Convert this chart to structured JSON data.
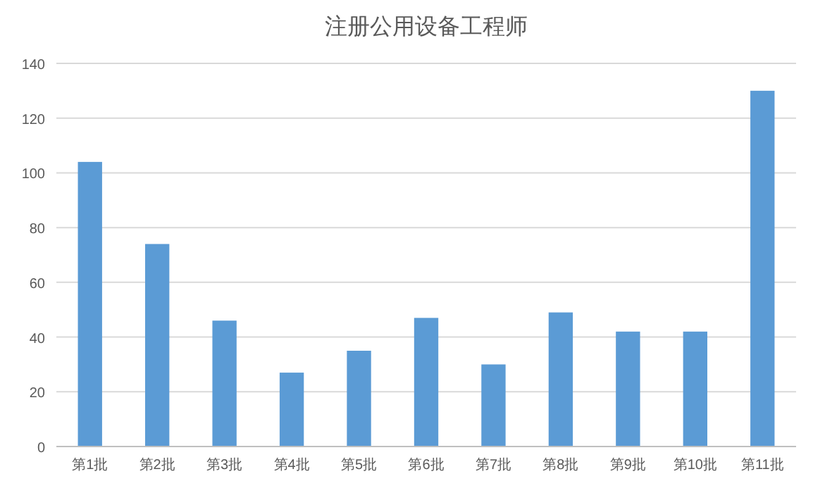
{
  "chart_data": {
    "type": "bar",
    "title": "注册公用设备工程师",
    "categories": [
      "第1批",
      "第2批",
      "第3批",
      "第4批",
      "第5批",
      "第6批",
      "第7批",
      "第8批",
      "第9批",
      "第10批",
      "第11批"
    ],
    "values": [
      104,
      74,
      46,
      27,
      35,
      47,
      30,
      49,
      42,
      42,
      130
    ],
    "color": "#5b9bd5",
    "ylim": [
      0,
      140
    ],
    "yticks": [
      0,
      20,
      40,
      60,
      80,
      100,
      120,
      140
    ],
    "grid": "y"
  }
}
